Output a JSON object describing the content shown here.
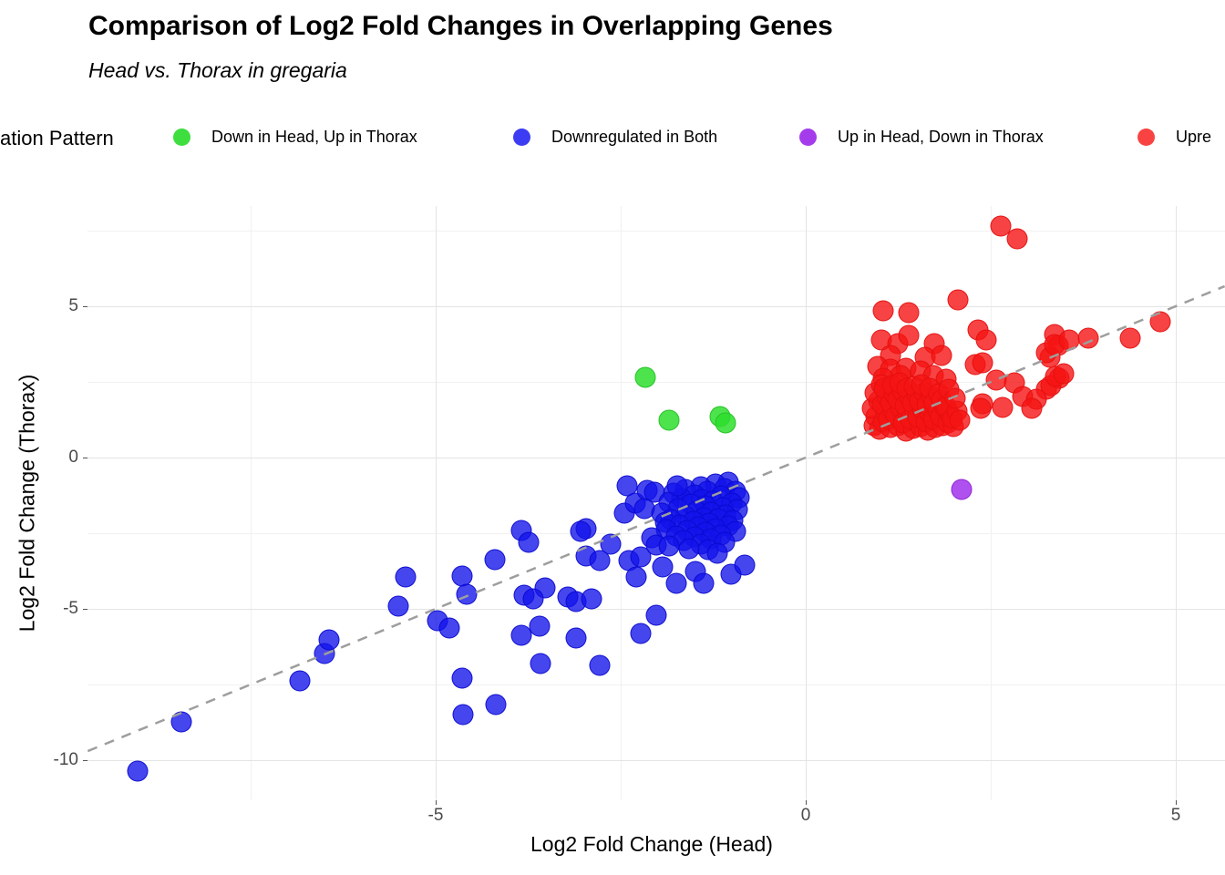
{
  "header": {
    "title": "Comparison of Log2 Fold Changes in Overlapping Genes",
    "subtitle": "Head vs. Thorax in gregaria"
  },
  "legend": {
    "title": "ation Pattern",
    "items": [
      {
        "label": "Down in Head, Up in Thorax",
        "color": "#3dde3d"
      },
      {
        "label": "Downregulated in Both",
        "color": "#3c3cf2"
      },
      {
        "label": "Up in Head, Down in Thorax",
        "color": "#a43cec"
      },
      {
        "label": "Upre",
        "color": "#f94343"
      }
    ]
  },
  "chart_data": {
    "type": "scatter",
    "title": "Comparison of Log2 Fold Changes in Overlapping Genes",
    "subtitle": "Head vs. Thorax in gregaria",
    "xlabel": "Log2 Fold Change (Head)",
    "ylabel": "Log2 Fold Change (Thorax)",
    "xlim": [
      -9.704,
      5.665
    ],
    "ylim": [
      -11.325,
      8.313
    ],
    "grid": true,
    "legend_position": "top",
    "x_ticks": [
      {
        "value": -5,
        "label": "-5"
      },
      {
        "value": 0,
        "label": "0"
      },
      {
        "value": 5,
        "label": "5"
      }
    ],
    "y_ticks": [
      {
        "value": 5,
        "label": "5"
      },
      {
        "value": 0,
        "label": "0"
      },
      {
        "value": -5,
        "label": "-5"
      },
      {
        "value": -10,
        "label": "-10"
      }
    ],
    "x_minor": [
      -7.5,
      -2.5,
      2.5
    ],
    "y_minor": [
      7.5,
      2.5,
      -2.5,
      -7.5
    ],
    "identity_line": {
      "style": "dashed",
      "color": "#9e9e9e",
      "x1": -9.7,
      "y1": -9.7,
      "x2": 5.66,
      "y2": 5.66
    },
    "series": [
      {
        "name": "Downregulated in Both",
        "fill": "rgba(18,18,235,0.78)",
        "stroke": "rgba(10,10,205,0.9)",
        "points": [
          [
            -9.03,
            -10.36
          ],
          [
            -8.44,
            -8.74
          ],
          [
            -6.84,
            -7.37
          ],
          [
            -6.5,
            -6.48
          ],
          [
            -6.44,
            -6.01
          ],
          [
            -5.5,
            -4.91
          ],
          [
            -5.41,
            -3.95
          ],
          [
            -4.97,
            -5.38
          ],
          [
            -4.81,
            -5.64
          ],
          [
            -4.64,
            -3.93
          ],
          [
            -4.58,
            -4.51
          ],
          [
            -4.2,
            -3.37
          ],
          [
            -4.63,
            -8.49
          ],
          [
            -4.19,
            -8.16
          ],
          [
            -4.64,
            -7.29
          ],
          [
            -3.84,
            -2.41
          ],
          [
            -3.74,
            -2.8
          ],
          [
            -3.52,
            -4.31
          ],
          [
            -3.8,
            -4.55
          ],
          [
            -3.68,
            -4.66
          ],
          [
            -3.21,
            -4.61
          ],
          [
            -3.1,
            -4.76
          ],
          [
            -2.9,
            -4.66
          ],
          [
            -3.84,
            -5.86
          ],
          [
            -3.6,
            -5.56
          ],
          [
            -3.1,
            -5.96
          ],
          [
            -3.58,
            -6.81
          ],
          [
            -2.78,
            -6.87
          ],
          [
            -2.23,
            -5.81
          ],
          [
            -2.02,
            -5.21
          ],
          [
            -2.97,
            -2.35
          ],
          [
            -3.04,
            -2.44
          ],
          [
            -2.97,
            -3.25
          ],
          [
            -2.78,
            -3.4
          ],
          [
            -2.64,
            -2.86
          ],
          [
            -2.45,
            -1.84
          ],
          [
            -2.41,
            -0.93
          ],
          [
            -2.39,
            -3.4
          ],
          [
            -2.23,
            -3.28
          ],
          [
            -2.29,
            -3.95
          ],
          [
            -1.93,
            -3.61
          ],
          [
            -1.75,
            -4.16
          ],
          [
            -1.49,
            -3.76
          ],
          [
            -1.38,
            -4.15
          ],
          [
            -1.01,
            -3.86
          ],
          [
            -0.83,
            -3.55
          ],
          [
            -2.3,
            -1.5
          ],
          [
            -1.05,
            -0.8
          ],
          [
            -1.22,
            -0.88
          ],
          [
            -1.42,
            -0.95
          ],
          [
            -1.1,
            -1.02
          ],
          [
            -1.62,
            -1.05
          ],
          [
            -0.95,
            -1.1
          ],
          [
            -1.33,
            -1.12
          ],
          [
            -1.78,
            -1.18
          ],
          [
            -1.5,
            -1.22
          ],
          [
            -1.15,
            -1.28
          ],
          [
            -0.9,
            -1.32
          ],
          [
            -1.68,
            -1.35
          ],
          [
            -1.4,
            -1.4
          ],
          [
            -2.14,
            -1.08
          ],
          [
            -2.04,
            -1.14
          ],
          [
            -1.25,
            -1.45
          ],
          [
            -1.85,
            -1.48
          ],
          [
            -1.0,
            -1.52
          ],
          [
            -1.55,
            -1.55
          ],
          [
            -1.35,
            -1.6
          ],
          [
            -2.18,
            -1.69
          ],
          [
            -1.12,
            -1.65
          ],
          [
            -1.72,
            -1.7
          ],
          [
            -0.92,
            -1.72
          ],
          [
            -1.48,
            -1.78
          ],
          [
            -1.28,
            -1.82
          ],
          [
            -1.95,
            -1.85
          ],
          [
            -1.08,
            -1.9
          ],
          [
            -1.62,
            -1.92
          ],
          [
            -1.38,
            -1.98
          ],
          [
            -1.18,
            -2.02
          ],
          [
            -1.82,
            -2.05
          ],
          [
            -0.98,
            -2.08
          ],
          [
            -1.52,
            -2.12
          ],
          [
            -1.9,
            -2.14
          ],
          [
            -1.3,
            -2.18
          ],
          [
            -1.7,
            -2.22
          ],
          [
            -1.05,
            -2.25
          ],
          [
            -1.45,
            -2.3
          ],
          [
            -1.22,
            -2.35
          ],
          [
            -1.88,
            -2.38
          ],
          [
            -1.6,
            -2.42
          ],
          [
            -0.95,
            -2.45
          ],
          [
            -1.35,
            -2.48
          ],
          [
            -2.08,
            -2.65
          ],
          [
            -1.15,
            -2.55
          ],
          [
            -1.75,
            -2.58
          ],
          [
            -1.5,
            -2.62
          ],
          [
            -1.28,
            -2.68
          ],
          [
            -2.02,
            -2.89
          ],
          [
            -1.65,
            -2.75
          ],
          [
            -1.1,
            -2.8
          ],
          [
            -1.42,
            -2.85
          ],
          [
            -1.85,
            -2.92
          ],
          [
            -1.58,
            -3.0
          ],
          [
            -1.32,
            -3.05
          ],
          [
            -1.2,
            -3.15
          ],
          [
            -1.74,
            -0.93
          ]
        ]
      },
      {
        "name": "Upre",
        "fill": "rgba(245,20,20,0.8)",
        "stroke": "rgba(228,15,15,0.9)",
        "points": [
          [
            2.63,
            7.65
          ],
          [
            2.86,
            7.24
          ],
          [
            2.06,
            5.22
          ],
          [
            1.05,
            4.85
          ],
          [
            1.39,
            4.79
          ],
          [
            2.33,
            4.22
          ],
          [
            2.44,
            3.88
          ],
          [
            1.02,
            3.88
          ],
          [
            1.24,
            3.77
          ],
          [
            1.39,
            4.04
          ],
          [
            1.74,
            3.77
          ],
          [
            1.15,
            3.37
          ],
          [
            1.61,
            3.31
          ],
          [
            1.84,
            3.37
          ],
          [
            3.36,
            4.07
          ],
          [
            3.41,
            3.7
          ],
          [
            3.3,
            3.31
          ],
          [
            3.82,
            3.95
          ],
          [
            4.38,
            3.95
          ],
          [
            4.79,
            4.49
          ],
          [
            3.42,
            2.62
          ],
          [
            3.25,
            2.26
          ],
          [
            2.29,
            3.07
          ],
          [
            2.39,
            3.13
          ],
          [
            2.57,
            2.56
          ],
          [
            2.82,
            2.47
          ],
          [
            2.93,
            2.02
          ],
          [
            3.11,
            1.93
          ],
          [
            3.31,
            2.38
          ],
          [
            3.37,
            2.68
          ],
          [
            3.48,
            2.77
          ],
          [
            3.25,
            3.46
          ],
          [
            3.36,
            3.73
          ],
          [
            3.56,
            3.89
          ],
          [
            2.39,
            1.78
          ],
          [
            2.37,
            1.63
          ],
          [
            2.66,
            1.66
          ],
          [
            3.05,
            1.63
          ],
          [
            0.97,
            3.02
          ],
          [
            1.15,
            2.92
          ],
          [
            1.35,
            2.96
          ],
          [
            1.55,
            2.86
          ],
          [
            1.72,
            2.7
          ],
          [
            1.28,
            2.72
          ],
          [
            1.9,
            2.6
          ],
          [
            1.05,
            2.62
          ],
          [
            0.92,
            1.05
          ],
          [
            0.95,
            1.35
          ],
          [
            0.9,
            1.62
          ],
          [
            0.98,
            1.88
          ],
          [
            0.93,
            2.15
          ],
          [
            1.02,
            2.42
          ],
          [
            1.0,
            0.92
          ],
          [
            1.05,
            1.18
          ],
          [
            1.08,
            1.48
          ],
          [
            1.03,
            1.75
          ],
          [
            1.1,
            2.02
          ],
          [
            1.06,
            2.28
          ],
          [
            1.15,
            0.98
          ],
          [
            1.12,
            1.28
          ],
          [
            1.18,
            1.55
          ],
          [
            1.14,
            1.82
          ],
          [
            1.2,
            2.1
          ],
          [
            1.17,
            2.38
          ],
          [
            1.25,
            1.05
          ],
          [
            1.22,
            1.38
          ],
          [
            1.28,
            1.65
          ],
          [
            1.24,
            1.92
          ],
          [
            1.3,
            2.2
          ],
          [
            1.27,
            2.48
          ],
          [
            1.35,
            0.88
          ],
          [
            1.32,
            1.15
          ],
          [
            1.38,
            1.45
          ],
          [
            1.34,
            1.72
          ],
          [
            1.4,
            2.0
          ],
          [
            1.37,
            2.28
          ],
          [
            1.45,
            0.95
          ],
          [
            1.42,
            1.25
          ],
          [
            1.48,
            1.52
          ],
          [
            1.44,
            1.8
          ],
          [
            1.5,
            2.08
          ],
          [
            1.47,
            2.35
          ],
          [
            1.55,
            1.02
          ],
          [
            1.52,
            1.32
          ],
          [
            1.58,
            1.6
          ],
          [
            1.54,
            1.88
          ],
          [
            1.6,
            2.15
          ],
          [
            1.57,
            2.42
          ],
          [
            1.65,
            0.9
          ],
          [
            1.62,
            1.18
          ],
          [
            1.68,
            1.48
          ],
          [
            1.64,
            1.75
          ],
          [
            1.7,
            2.02
          ],
          [
            1.67,
            2.3
          ],
          [
            1.75,
            0.98
          ],
          [
            1.72,
            1.28
          ],
          [
            1.78,
            1.55
          ],
          [
            1.74,
            1.82
          ],
          [
            1.8,
            2.1
          ],
          [
            1.85,
            1.05
          ],
          [
            1.82,
            1.35
          ],
          [
            1.88,
            1.62
          ],
          [
            1.84,
            1.9
          ],
          [
            1.92,
            1.15
          ],
          [
            1.95,
            1.45
          ],
          [
            1.9,
            1.7
          ],
          [
            2.0,
            1.02
          ],
          [
            1.98,
            1.3
          ],
          [
            2.05,
            1.55
          ],
          [
            2.08,
            1.22
          ],
          [
            1.93,
            2.25
          ],
          [
            2.02,
            1.95
          ]
        ]
      },
      {
        "name": "Down in Head, Up in Thorax",
        "fill": "rgba(45,222,45,0.85)",
        "stroke": "rgba(40,195,40,1)",
        "points": [
          [
            -2.17,
            2.65
          ],
          [
            -1.85,
            1.23
          ],
          [
            -1.16,
            1.36
          ],
          [
            -1.08,
            1.14
          ]
        ]
      },
      {
        "name": "Up in Head, Down in Thorax",
        "fill": "rgba(160,50,235,0.85)",
        "stroke": "rgba(145,40,215,1)",
        "points": [
          [
            2.11,
            -1.05
          ]
        ]
      }
    ]
  }
}
